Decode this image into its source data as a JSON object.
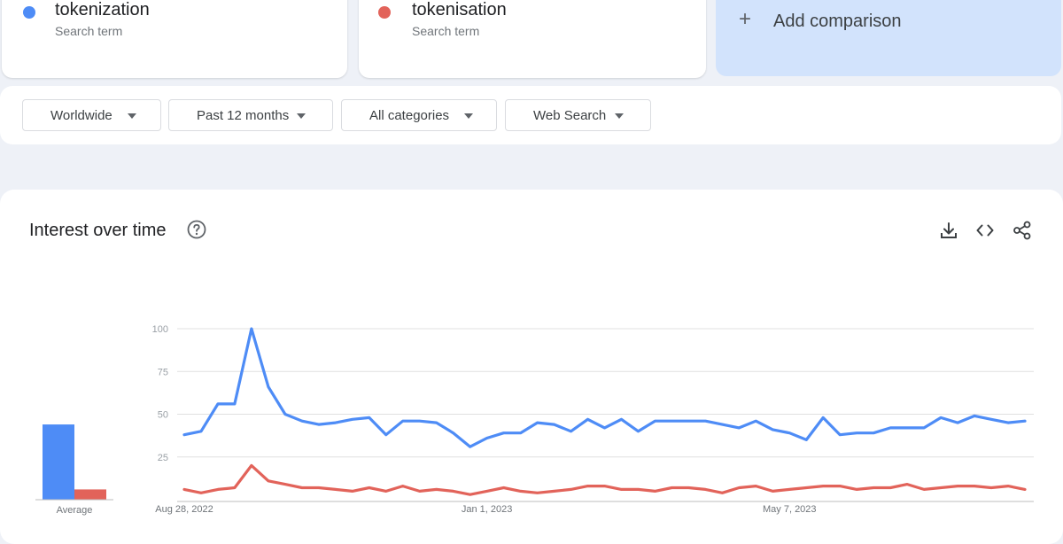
{
  "terms": [
    {
      "name": "tokenization",
      "sub": "Search term",
      "color": "#4e8cf6"
    },
    {
      "name": "tokenisation",
      "sub": "Search term",
      "color": "#e2635a"
    }
  ],
  "add_comparison": {
    "icon": "plus-icon",
    "label": "Add comparison"
  },
  "filters": [
    {
      "label": "Worldwide"
    },
    {
      "label": "Past 12 months"
    },
    {
      "label": "All categories"
    },
    {
      "label": "Web Search"
    }
  ],
  "chart_card": {
    "title": "Interest over time",
    "icons": [
      "help-icon",
      "download-icon",
      "embed-code-icon",
      "share-icon"
    ]
  },
  "chart_data": {
    "type": "line",
    "title": "Interest over time",
    "y_ticks": [
      25,
      50,
      75,
      100
    ],
    "ylim": [
      0,
      100
    ],
    "grid": true,
    "x_tick_labels": [
      {
        "label": "Aug 28, 2022",
        "index": 0
      },
      {
        "label": "Jan 1, 2023",
        "index": 18
      },
      {
        "label": "May 7, 2023",
        "index": 36
      }
    ],
    "series": [
      {
        "name": "tokenization",
        "color": "#4e8cf6",
        "values": [
          38,
          40,
          56,
          56,
          100,
          66,
          50,
          46,
          44,
          45,
          47,
          48,
          38,
          46,
          46,
          45,
          39,
          31,
          36,
          39,
          39,
          45,
          44,
          40,
          47,
          42,
          47,
          40,
          46,
          46,
          46,
          46,
          44,
          42,
          46,
          41,
          39,
          35,
          48,
          38,
          39,
          39,
          42,
          42,
          42,
          48,
          45,
          49,
          47,
          45,
          46
        ]
      },
      {
        "name": "tokenisation",
        "color": "#e2635a",
        "values": [
          6,
          4,
          6,
          7,
          20,
          11,
          9,
          7,
          7,
          6,
          5,
          7,
          5,
          8,
          5,
          6,
          5,
          3,
          5,
          7,
          5,
          4,
          5,
          6,
          8,
          8,
          6,
          6,
          5,
          7,
          7,
          6,
          4,
          7,
          8,
          5,
          6,
          7,
          8,
          8,
          6,
          7,
          7,
          9,
          6,
          7,
          8,
          8,
          7,
          8,
          6
        ]
      }
    ],
    "average": {
      "label": "Average",
      "values": [
        {
          "name": "tokenization",
          "value": 44
        },
        {
          "name": "tokenisation",
          "value": 6
        }
      ]
    }
  }
}
